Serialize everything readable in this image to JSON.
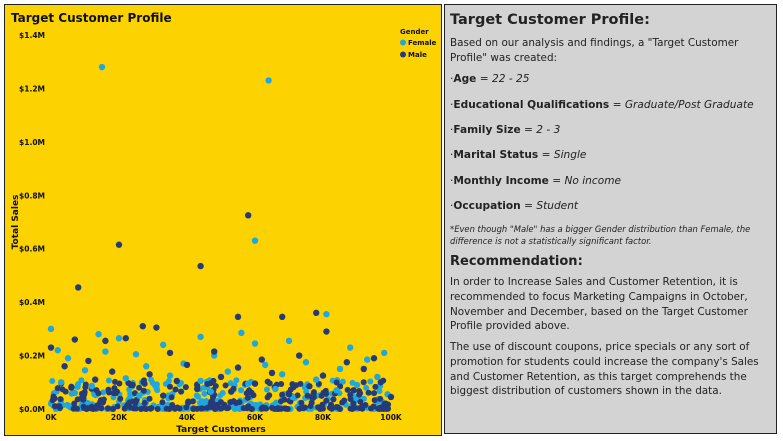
{
  "chart_data": {
    "type": "scatter",
    "title": "Target Customer Profile",
    "xlabel": "Target Customers",
    "ylabel": "Total Sales",
    "xlim": [
      0,
      100000
    ],
    "ylim": [
      0,
      1400000
    ],
    "xticks": [
      {
        "value": 0,
        "label": "0K"
      },
      {
        "value": 20000,
        "label": "20K"
      },
      {
        "value": 40000,
        "label": "40K"
      },
      {
        "value": 60000,
        "label": "60K"
      },
      {
        "value": 80000,
        "label": "80K"
      },
      {
        "value": 100000,
        "label": "100K"
      }
    ],
    "yticks": [
      {
        "value": 0,
        "label": "$0.0M"
      },
      {
        "value": 200000,
        "label": "$0.2M"
      },
      {
        "value": 400000,
        "label": "$0.4M"
      },
      {
        "value": 600000,
        "label": "$0.6M"
      },
      {
        "value": 800000,
        "label": "$0.8M"
      },
      {
        "value": 1000000,
        "label": "$1.0M"
      },
      {
        "value": 1200000,
        "label": "$1.2M"
      },
      {
        "value": 1400000,
        "label": "$1.4M"
      }
    ],
    "legend": {
      "title": "Gender",
      "position": "top-right"
    },
    "series": [
      {
        "name": "Female",
        "color": "#1FA7E0",
        "points": [
          [
            15000,
            1280000
          ],
          [
            64000,
            1230000
          ],
          [
            60000,
            630000
          ],
          [
            81000,
            355000
          ],
          [
            0,
            300000
          ],
          [
            14000,
            280000
          ],
          [
            44000,
            270000
          ],
          [
            56000,
            285000
          ],
          [
            70000,
            255000
          ],
          [
            20000,
            265000
          ],
          [
            2000,
            220000
          ],
          [
            33000,
            240000
          ],
          [
            60000,
            245000
          ],
          [
            88000,
            230000
          ],
          [
            98000,
            210000
          ],
          [
            16000,
            215000
          ],
          [
            25000,
            205000
          ],
          [
            48000,
            200000
          ],
          [
            5000,
            190000
          ],
          [
            93000,
            185000
          ],
          [
            75000,
            175000
          ],
          [
            39000,
            170000
          ],
          [
            63000,
            165000
          ],
          [
            28000,
            160000
          ],
          [
            85000,
            150000
          ],
          [
            10000,
            145000
          ],
          [
            52000,
            140000
          ],
          [
            68000,
            130000
          ],
          [
            35000,
            125000
          ],
          [
            96000,
            120000
          ],
          [
            22000,
            115000
          ],
          [
            78000,
            110000
          ],
          [
            44000,
            105000
          ],
          [
            3000,
            100000
          ],
          [
            58000,
            95000
          ],
          [
            90000,
            90000
          ],
          [
            12000,
            85000
          ],
          [
            31000,
            80000
          ],
          [
            66000,
            75000
          ],
          [
            84000,
            70000
          ],
          [
            47000,
            65000
          ],
          [
            7000,
            60000
          ],
          [
            99000,
            55000
          ],
          [
            26000,
            50000
          ],
          [
            71000,
            45000
          ]
        ]
      },
      {
        "name": "Male",
        "color": "#253A79",
        "points": [
          [
            8000,
            455000
          ],
          [
            58000,
            725000
          ],
          [
            20000,
            615000
          ],
          [
            44000,
            535000
          ],
          [
            55000,
            345000
          ],
          [
            68000,
            345000
          ],
          [
            78000,
            360000
          ],
          [
            81000,
            290000
          ],
          [
            27000,
            310000
          ],
          [
            31000,
            305000
          ],
          [
            16000,
            255000
          ],
          [
            7000,
            260000
          ],
          [
            0,
            230000
          ],
          [
            22000,
            265000
          ],
          [
            62000,
            185000
          ],
          [
            95000,
            190000
          ],
          [
            35000,
            210000
          ],
          [
            48000,
            215000
          ],
          [
            11000,
            180000
          ],
          [
            87000,
            175000
          ],
          [
            73000,
            200000
          ],
          [
            4000,
            160000
          ],
          [
            40000,
            165000
          ],
          [
            55000,
            155000
          ],
          [
            92000,
            150000
          ],
          [
            18000,
            140000
          ],
          [
            65000,
            135000
          ],
          [
            29000,
            130000
          ],
          [
            80000,
            125000
          ],
          [
            50000,
            120000
          ],
          [
            13000,
            110000
          ],
          [
            37000,
            105000
          ],
          [
            97000,
            100000
          ],
          [
            60000,
            95000
          ],
          [
            24000,
            90000
          ],
          [
            76000,
            85000
          ],
          [
            6000,
            80000
          ],
          [
            43000,
            75000
          ],
          [
            89000,
            70000
          ],
          [
            53000,
            65000
          ],
          [
            19000,
            60000
          ],
          [
            70000,
            55000
          ],
          [
            33000,
            50000
          ],
          [
            100000,
            45000
          ],
          [
            1000,
            40000
          ]
        ]
      }
    ]
  },
  "profile": {
    "title": "Target Customer Profile:",
    "intro": "Based on our analysis and findings, a \"Target Customer Profile\" was created:",
    "items": [
      {
        "label": "Age",
        "sep": " = ",
        "value": "22 - 25"
      },
      {
        "label": "Educational Qualifications",
        "sep": " = ",
        "value": "Graduate/Post Graduate"
      },
      {
        "label": "Family Size",
        "sep": " = ",
        "value": "2 - 3"
      },
      {
        "label": "Marital Status",
        "sep": " = ",
        "value": "Single"
      },
      {
        "label": "Monthly Income",
        "sep": " = ",
        "value": "No income"
      },
      {
        "label": "Occupation",
        "sep": " = ",
        "value": "Student"
      }
    ],
    "note": "*Even though \"Male\" has a bigger Gender distribution than Female, the difference is not a statistically significant factor.",
    "recommendation_title": "Recommendation:",
    "recommendation_p1": "In order to Increase Sales and Customer Retention, it is recommended to focus Marketing Campaigns in October, November and December, based on the Target Customer Profile provided above.",
    "recommendation_p2": "The use of discount coupons, price specials or any sort of promotion for students could increase the company's Sales and Customer Retention, as this target comprehends the biggest distribution of customers shown in the data."
  }
}
